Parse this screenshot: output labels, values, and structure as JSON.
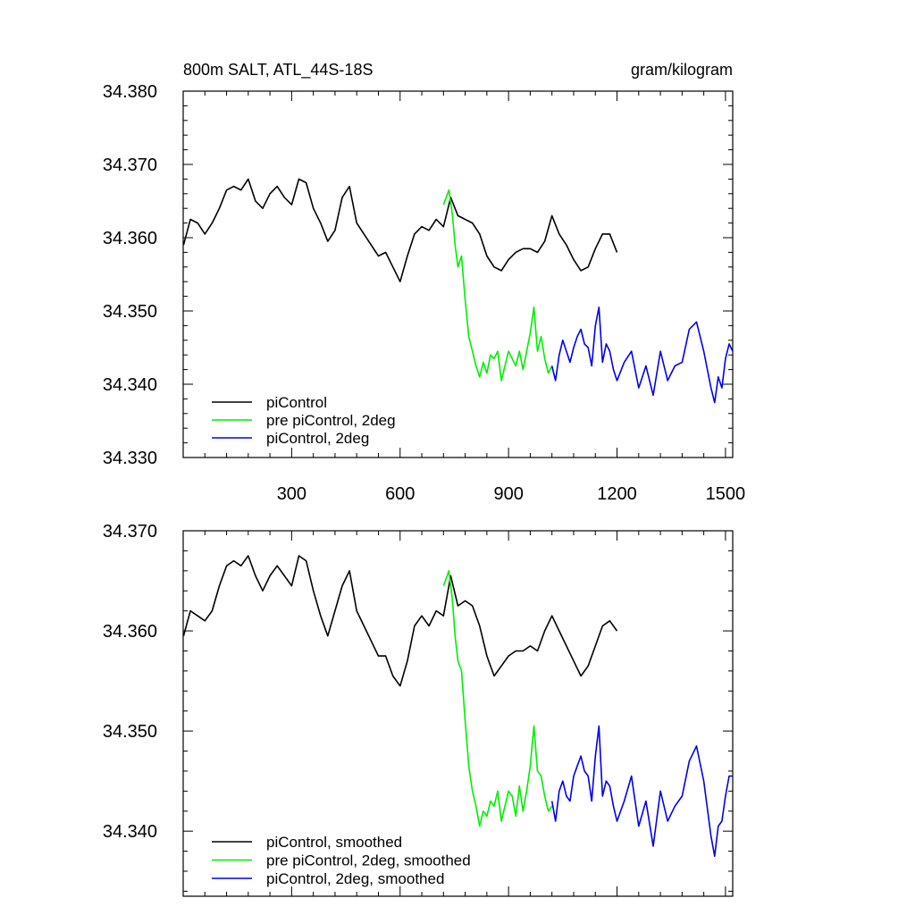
{
  "chart_data": [
    {
      "type": "line",
      "title": "800m SALT, ATL_44S-18S",
      "units": "gram/kilogram",
      "xlim": [
        0,
        1520
      ],
      "ylim": [
        34.33,
        34.38
      ],
      "yticks": [
        "34.330",
        "34.340",
        "34.350",
        "34.360",
        "34.370",
        "34.380"
      ],
      "xticks": [
        "300",
        "600",
        "900",
        "1200",
        "1500"
      ],
      "legend": "bottom-left",
      "series": [
        {
          "name": "piControl",
          "color": "#000000",
          "x": [
            1,
            20,
            40,
            60,
            80,
            100,
            120,
            140,
            160,
            180,
            200,
            220,
            240,
            260,
            280,
            300,
            320,
            340,
            360,
            380,
            400,
            420,
            440,
            460,
            480,
            500,
            520,
            540,
            560,
            580,
            600,
            620,
            640,
            660,
            680,
            700,
            720,
            740,
            760,
            780,
            800,
            820,
            840,
            860,
            880,
            900,
            920,
            940,
            960,
            980,
            1000,
            1020,
            1040,
            1060,
            1080,
            1100,
            1120,
            1140,
            1160,
            1180,
            1200
          ],
          "values": [
            34.359,
            34.3625,
            34.362,
            34.3605,
            34.362,
            34.364,
            34.3665,
            34.367,
            34.3665,
            34.368,
            34.365,
            34.364,
            34.366,
            34.367,
            34.3655,
            34.3645,
            34.368,
            34.3675,
            34.364,
            34.362,
            34.3595,
            34.361,
            34.3655,
            34.367,
            34.362,
            34.3605,
            34.359,
            34.3575,
            34.358,
            34.356,
            34.354,
            34.3575,
            34.3605,
            34.3615,
            34.361,
            34.3625,
            34.3615,
            34.3655,
            34.363,
            34.3625,
            34.362,
            34.3605,
            34.3575,
            34.356,
            34.3555,
            34.357,
            34.358,
            34.3585,
            34.3585,
            34.358,
            34.3595,
            34.363,
            34.3605,
            34.359,
            34.357,
            34.3555,
            34.356,
            34.3585,
            34.3605,
            34.3605,
            34.358
          ]
        },
        {
          "name": "pre piControl, 2deg",
          "color": "#00ee00",
          "x": [
            720,
            735,
            745,
            752,
            760,
            770,
            780,
            790,
            800,
            810,
            820,
            830,
            840,
            850,
            860,
            870,
            880,
            890,
            900,
            910,
            920,
            930,
            940,
            950,
            960,
            970,
            980,
            990,
            1000,
            1010,
            1020
          ],
          "values": [
            34.3645,
            34.3665,
            34.363,
            34.359,
            34.356,
            34.3575,
            34.3515,
            34.3465,
            34.3445,
            34.3425,
            34.341,
            34.343,
            34.3415,
            34.344,
            34.3435,
            34.3445,
            34.3405,
            34.3425,
            34.3445,
            34.3435,
            34.3425,
            34.3445,
            34.342,
            34.3445,
            34.347,
            34.3505,
            34.3445,
            34.3465,
            34.3435,
            34.3415,
            34.3425
          ]
        },
        {
          "name": "piControl, 2deg",
          "color": "#0000ee",
          "x": [
            1020,
            1030,
            1040,
            1050,
            1060,
            1070,
            1080,
            1090,
            1100,
            1110,
            1120,
            1130,
            1140,
            1150,
            1160,
            1170,
            1180,
            1190,
            1200,
            1220,
            1240,
            1260,
            1280,
            1300,
            1320,
            1340,
            1360,
            1380,
            1400,
            1420,
            1440,
            1460,
            1470,
            1480,
            1490,
            1500,
            1510,
            1520
          ],
          "values": [
            34.3425,
            34.3405,
            34.344,
            34.346,
            34.3445,
            34.343,
            34.345,
            34.3465,
            34.3475,
            34.3455,
            34.345,
            34.3425,
            34.348,
            34.3505,
            34.343,
            34.3455,
            34.3445,
            34.342,
            34.3405,
            34.343,
            34.3445,
            34.3395,
            34.3425,
            34.3385,
            34.3445,
            34.3405,
            34.3425,
            34.343,
            34.3475,
            34.3485,
            34.3445,
            34.3395,
            34.3375,
            34.341,
            34.3395,
            34.3435,
            34.3455,
            34.3445
          ]
        }
      ]
    },
    {
      "type": "line",
      "xlim": [
        0,
        1520
      ],
      "ylim": [
        34.3335,
        34.37
      ],
      "yticks": [
        "34.340",
        "34.350",
        "34.360",
        "34.370"
      ],
      "legend": "bottom-left",
      "series": [
        {
          "name": "piControl, smoothed",
          "color": "#000000",
          "x": [
            1,
            20,
            40,
            60,
            80,
            100,
            120,
            140,
            160,
            180,
            200,
            220,
            240,
            260,
            280,
            300,
            320,
            340,
            360,
            380,
            400,
            420,
            440,
            460,
            480,
            500,
            520,
            540,
            560,
            580,
            600,
            620,
            640,
            660,
            680,
            700,
            720,
            740,
            760,
            780,
            800,
            820,
            840,
            860,
            880,
            900,
            920,
            940,
            960,
            980,
            1000,
            1020,
            1040,
            1060,
            1080,
            1100,
            1120,
            1140,
            1160,
            1180,
            1200
          ],
          "values": [
            34.3595,
            34.362,
            34.3615,
            34.361,
            34.362,
            34.3645,
            34.3665,
            34.367,
            34.3665,
            34.3675,
            34.3655,
            34.364,
            34.3655,
            34.3665,
            34.3655,
            34.3645,
            34.3675,
            34.367,
            34.364,
            34.3615,
            34.3595,
            34.362,
            34.3645,
            34.366,
            34.362,
            34.3605,
            34.359,
            34.3575,
            34.3575,
            34.3555,
            34.3545,
            34.357,
            34.3605,
            34.3615,
            34.3605,
            34.362,
            34.3615,
            34.3655,
            34.3625,
            34.363,
            34.3625,
            34.3605,
            34.3575,
            34.3555,
            34.3565,
            34.3575,
            34.358,
            34.358,
            34.3585,
            34.358,
            34.36,
            34.3615,
            34.36,
            34.3585,
            34.357,
            34.3555,
            34.3565,
            34.3585,
            34.3605,
            34.361,
            34.36
          ]
        },
        {
          "name": "pre piControl, 2deg, smoothed",
          "color": "#00ee00",
          "x": [
            720,
            735,
            745,
            752,
            760,
            770,
            780,
            790,
            800,
            810,
            820,
            830,
            840,
            850,
            860,
            870,
            880,
            890,
            900,
            910,
            920,
            930,
            940,
            950,
            960,
            970,
            980,
            990,
            1000,
            1010,
            1020
          ],
          "values": [
            34.3645,
            34.366,
            34.363,
            34.3595,
            34.357,
            34.356,
            34.351,
            34.3465,
            34.344,
            34.3425,
            34.3405,
            34.342,
            34.3415,
            34.343,
            34.3425,
            34.344,
            34.341,
            34.3425,
            34.344,
            34.3435,
            34.3415,
            34.3445,
            34.342,
            34.344,
            34.3465,
            34.3505,
            34.346,
            34.3455,
            34.3435,
            34.342,
            34.3425
          ]
        },
        {
          "name": "piControl, 2deg, smoothed",
          "color": "#0000ee",
          "x": [
            1020,
            1030,
            1040,
            1050,
            1060,
            1070,
            1080,
            1090,
            1100,
            1110,
            1120,
            1130,
            1140,
            1150,
            1160,
            1170,
            1180,
            1190,
            1200,
            1220,
            1240,
            1260,
            1280,
            1300,
            1320,
            1340,
            1360,
            1380,
            1400,
            1420,
            1440,
            1460,
            1470,
            1480,
            1490,
            1500,
            1510,
            1520
          ],
          "values": [
            34.343,
            34.341,
            34.344,
            34.345,
            34.3435,
            34.343,
            34.3455,
            34.3465,
            34.3475,
            34.346,
            34.3455,
            34.343,
            34.3475,
            34.3505,
            34.3435,
            34.345,
            34.3445,
            34.3425,
            34.341,
            34.343,
            34.3455,
            34.3405,
            34.343,
            34.3385,
            34.344,
            34.341,
            34.3425,
            34.3435,
            34.347,
            34.3485,
            34.345,
            34.3395,
            34.3375,
            34.3405,
            34.341,
            34.3435,
            34.3455,
            34.3455
          ]
        }
      ]
    }
  ]
}
